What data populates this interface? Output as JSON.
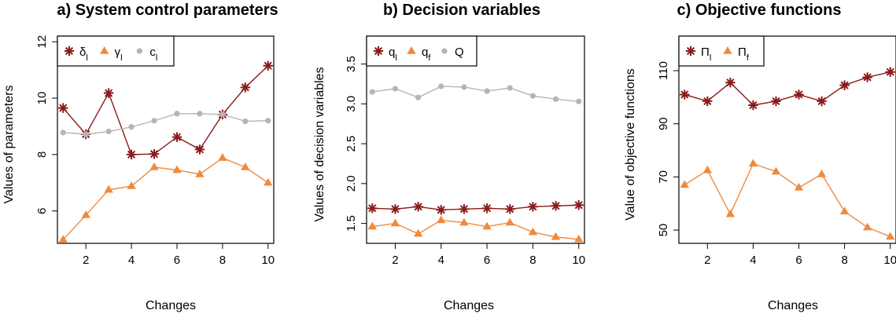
{
  "chart_data": [
    {
      "type": "line",
      "title": "a) System control parameters",
      "xlabel": "Changes",
      "ylabel": "Values of parameters",
      "x": [
        1,
        2,
        3,
        4,
        5,
        6,
        7,
        8,
        9,
        10
      ],
      "xlim": [
        0.75,
        10.25
      ],
      "ylim": [
        4.85,
        12.2
      ],
      "xticks": [
        2,
        4,
        6,
        8,
        10
      ],
      "yticks": [
        6,
        8,
        10,
        12
      ],
      "legend_position": "top-left",
      "series": [
        {
          "name": "δl",
          "base": "δ",
          "sub": "l",
          "marker": "star",
          "color": "#8b1a1a",
          "values": [
            9.65,
            8.72,
            10.18,
            8.0,
            8.02,
            8.62,
            8.18,
            9.42,
            10.38,
            11.15
          ]
        },
        {
          "name": "γl",
          "base": "γ",
          "sub": "l",
          "marker": "triangle",
          "color": "#f08a3c",
          "values": [
            4.98,
            5.85,
            6.75,
            6.88,
            7.55,
            7.45,
            7.3,
            7.88,
            7.55,
            7.0
          ]
        },
        {
          "name": "cl",
          "base": "c",
          "sub": "l",
          "marker": "circle",
          "color": "#b5b5b5",
          "values": [
            8.78,
            8.72,
            8.82,
            8.98,
            9.2,
            9.45,
            9.45,
            9.42,
            9.18,
            9.2
          ]
        }
      ]
    },
    {
      "type": "line",
      "title": "b) Decision variables",
      "xlabel": "Changes",
      "ylabel": "Values of decision variables",
      "x": [
        1,
        2,
        3,
        4,
        5,
        6,
        7,
        8,
        9,
        10
      ],
      "xlim": [
        0.75,
        10.25
      ],
      "ylim": [
        1.25,
        3.85
      ],
      "xticks": [
        2,
        4,
        6,
        8,
        10
      ],
      "yticks": [
        1.5,
        2.0,
        2.5,
        3.0,
        3.5
      ],
      "legend_position": "top-left",
      "series": [
        {
          "name": "ql",
          "base": "q",
          "sub": "l",
          "marker": "star",
          "color": "#8b1a1a",
          "values": [
            1.69,
            1.68,
            1.71,
            1.67,
            1.68,
            1.69,
            1.68,
            1.71,
            1.72,
            1.73
          ]
        },
        {
          "name": "qf",
          "base": "q",
          "sub": "f",
          "marker": "triangle",
          "color": "#f08a3c",
          "values": [
            1.46,
            1.5,
            1.37,
            1.54,
            1.51,
            1.46,
            1.51,
            1.39,
            1.33,
            1.3
          ]
        },
        {
          "name": "Q",
          "base": "Q",
          "sub": "",
          "marker": "circle",
          "color": "#b5b5b5",
          "values": [
            3.15,
            3.19,
            3.08,
            3.22,
            3.21,
            3.16,
            3.2,
            3.1,
            3.06,
            3.03
          ]
        }
      ]
    },
    {
      "type": "line",
      "title": "c) Objective functions",
      "xlabel": "Changes",
      "ylabel": "Value of objective functions",
      "x": [
        1,
        2,
        3,
        4,
        5,
        6,
        7,
        8,
        9,
        10
      ],
      "xlim": [
        0.75,
        10.25
      ],
      "ylim": [
        45,
        123
      ],
      "xticks": [
        2,
        4,
        6,
        8,
        10
      ],
      "yticks": [
        50,
        70,
        90,
        110
      ],
      "legend_position": "top-left",
      "series": [
        {
          "name": "Πl",
          "base": "Π",
          "sub": "l",
          "marker": "star",
          "color": "#8b1a1a",
          "values": [
            101,
            98.5,
            105.5,
            97,
            98.5,
            101,
            98.5,
            104.5,
            107.5,
            109.5
          ]
        },
        {
          "name": "Πf",
          "base": "Π",
          "sub": "f",
          "marker": "triangle",
          "color": "#f08a3c",
          "values": [
            67,
            72.5,
            56,
            75,
            72,
            66,
            71,
            57,
            51,
            47.5
          ]
        }
      ]
    }
  ]
}
